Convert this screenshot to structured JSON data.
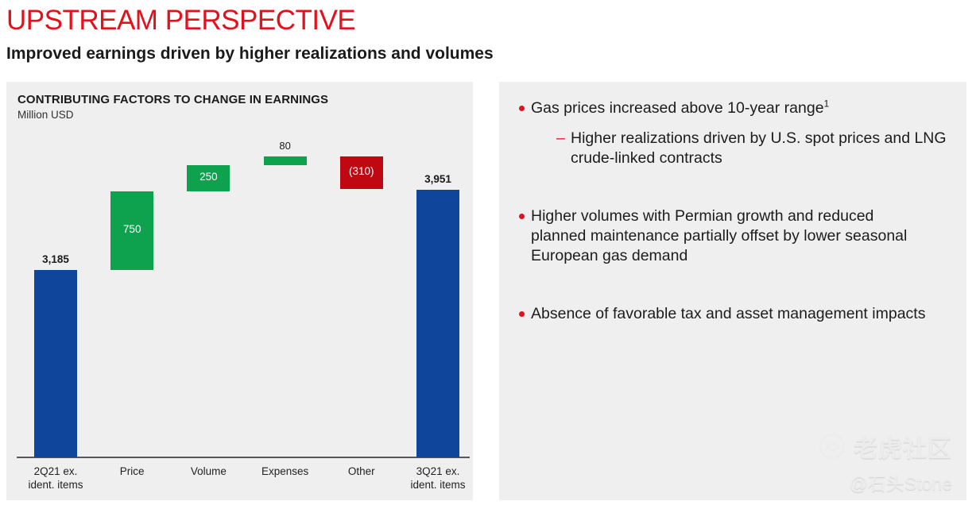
{
  "header": {
    "title": "UPSTREAM PERSPECTIVE",
    "subtitle": "Improved earnings driven by higher realizations and volumes"
  },
  "colors": {
    "accent_red": "#E4101C",
    "bar_blue": "#10459C",
    "bar_green": "#0EA24E",
    "bar_red": "#BF0811",
    "panel_bg": "#EFEFEF",
    "axis_line": "#58595B",
    "text_dark": "#1A1A1A"
  },
  "chart_data": {
    "type": "bar",
    "variant": "waterfall",
    "title": "CONTRIBUTING FACTORS TO CHANGE IN EARNINGS",
    "units": "Million USD",
    "categories": [
      "2Q21 ex.\nident. items",
      "Price",
      "Volume",
      "Expenses",
      "Other",
      "3Q21 ex.\nident. items"
    ],
    "values": [
      3185,
      750,
      250,
      80,
      -310,
      3951
    ],
    "labels": [
      "3,185",
      "750",
      "250",
      "80",
      "(310)",
      "3,951"
    ],
    "kinds": [
      "total",
      "delta",
      "delta",
      "delta",
      "delta",
      "total"
    ],
    "ylim": [
      1400,
      4600
    ],
    "grid": false,
    "legend": false
  },
  "right_panel": {
    "bullets": [
      {
        "text": "Gas prices increased above 10-year range",
        "sup": "1",
        "subs": [
          "Higher realizations driven by U.S. spot prices and LNG crude-linked contracts"
        ]
      },
      {
        "text": "Higher volumes with Permian growth and reduced planned maintenance partially offset by lower seasonal European gas demand",
        "subs": []
      },
      {
        "text": "Absence of favorable tax and asset management impacts",
        "subs": []
      }
    ]
  },
  "watermark": {
    "community": "老虎社区",
    "user": "@石头Stone"
  }
}
